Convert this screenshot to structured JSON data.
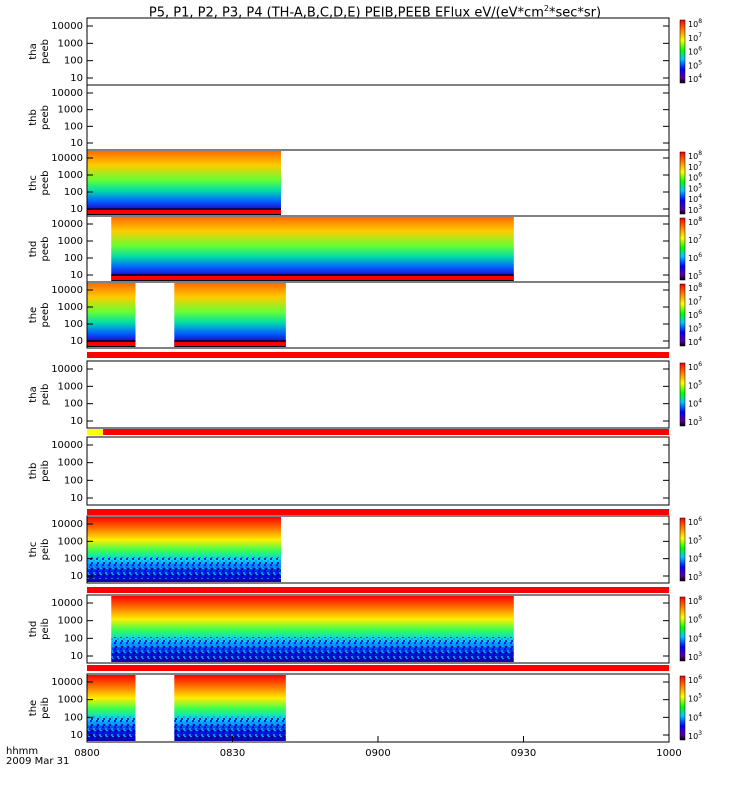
{
  "title": {
    "prefix": "P5, P1, P2, P3, P4 (TH-A,B,C,D,E) PEIB,PEEB EFlux eV/(eV*cm",
    "sup": "2",
    "suffix": "*sec*sr)"
  },
  "x_axis": {
    "label": "hhmm",
    "date": "2009 Mar 31",
    "ticks": [
      "0800",
      "0830",
      "0900",
      "0930",
      "1000"
    ]
  },
  "colors": {
    "high": "#ff0000",
    "mid": "#ffff00",
    "low_mid": "#00ff00",
    "low": "#0000ff",
    "floor": "#000000"
  },
  "chart_data": [
    {
      "type": "heatmap",
      "label1": "tha",
      "label2": "peeb",
      "y_ticks": [
        "10000",
        "1000",
        "100",
        "10"
      ],
      "cb_ticks": [
        {
          "m": "10",
          "e": "8"
        },
        {
          "m": "10",
          "e": "7"
        },
        {
          "m": "10",
          "e": "6"
        },
        {
          "m": "10",
          "e": "5"
        },
        {
          "m": "10",
          "e": "4"
        }
      ],
      "coverage": []
    },
    {
      "type": "heatmap",
      "label1": "thb",
      "label2": "peeb",
      "y_ticks": [
        "10000",
        "1000",
        "100",
        "10"
      ],
      "cb_ticks": [],
      "coverage": []
    },
    {
      "type": "heatmap",
      "label1": "thc",
      "label2": "peeb",
      "y_ticks": [
        "10000",
        "1000",
        "100",
        "10"
      ],
      "cb_ticks": [
        {
          "m": "10",
          "e": "8"
        },
        {
          "m": "10",
          "e": "7"
        },
        {
          "m": "10",
          "e": "6"
        },
        {
          "m": "10",
          "e": "5"
        },
        {
          "m": "10",
          "e": "4"
        },
        {
          "m": "10",
          "e": "3"
        }
      ],
      "coverage": [
        [
          "0800",
          "0840"
        ]
      ]
    },
    {
      "type": "heatmap",
      "label1": "thd",
      "label2": "peeb",
      "y_ticks": [
        "10000",
        "1000",
        "100",
        "10"
      ],
      "cb_ticks": [
        {
          "m": "10",
          "e": "8"
        },
        {
          "m": "10",
          "e": "7"
        },
        {
          "m": "10",
          "e": "6"
        },
        {
          "m": "10",
          "e": "5"
        }
      ],
      "coverage": [
        [
          "0805",
          "0888"
        ]
      ]
    },
    {
      "type": "heatmap",
      "label1": "the",
      "label2": "peeb",
      "y_ticks": [
        "10000",
        "1000",
        "100",
        "10"
      ],
      "cb_ticks": [
        {
          "m": "10",
          "e": "8"
        },
        {
          "m": "10",
          "e": "7"
        },
        {
          "m": "10",
          "e": "6"
        },
        {
          "m": "10",
          "e": "5"
        },
        {
          "m": "10",
          "e": "4"
        }
      ],
      "coverage": [
        [
          "0800",
          "0810"
        ],
        [
          "0818",
          "0841"
        ]
      ]
    },
    {
      "type": "heatmap",
      "label1": "tha",
      "label2": "peib",
      "y_ticks": [
        "10000",
        "1000",
        "100",
        "10"
      ],
      "cb_ticks": [
        {
          "m": "10",
          "e": "6"
        },
        {
          "m": "10",
          "e": "5"
        },
        {
          "m": "10",
          "e": "4"
        },
        {
          "m": "10",
          "e": "3"
        }
      ],
      "coverage": []
    },
    {
      "type": "heatmap",
      "label1": "thb",
      "label2": "peib",
      "y_ticks": [
        "10000",
        "1000",
        "100",
        "10"
      ],
      "cb_ticks": [],
      "coverage": []
    },
    {
      "type": "heatmap",
      "label1": "thc",
      "label2": "peib",
      "y_ticks": [
        "10000",
        "1000",
        "100",
        "10"
      ],
      "cb_ticks": [
        {
          "m": "10",
          "e": "6"
        },
        {
          "m": "10",
          "e": "5"
        },
        {
          "m": "10",
          "e": "4"
        },
        {
          "m": "10",
          "e": "3"
        }
      ],
      "coverage": [
        [
          "0800",
          "0840"
        ]
      ]
    },
    {
      "type": "heatmap",
      "label1": "thd",
      "label2": "peib",
      "y_ticks": [
        "10000",
        "1000",
        "100",
        "10"
      ],
      "cb_ticks": [
        {
          "m": "10",
          "e": "8"
        },
        {
          "m": "10",
          "e": "6"
        },
        {
          "m": "10",
          "e": "4"
        },
        {
          "m": "10",
          "e": "3"
        }
      ],
      "coverage": [
        [
          "0805",
          "0888"
        ]
      ]
    },
    {
      "type": "heatmap",
      "label1": "the",
      "label2": "peib",
      "y_ticks": [
        "10000",
        "1000",
        "100",
        "10"
      ],
      "cb_ticks": [
        {
          "m": "10",
          "e": "6"
        },
        {
          "m": "10",
          "e": "5"
        },
        {
          "m": "10",
          "e": "4"
        },
        {
          "m": "10",
          "e": "3"
        }
      ],
      "coverage": [
        [
          "0800",
          "0810"
        ],
        [
          "0818",
          "0841"
        ]
      ]
    }
  ]
}
